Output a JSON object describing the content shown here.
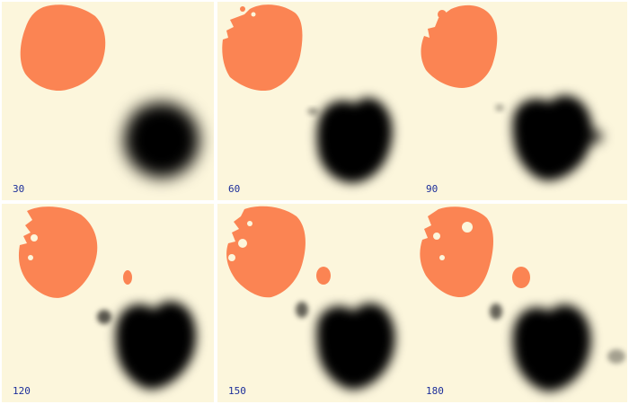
{
  "colors": {
    "background": "#fcf6dc",
    "blob_orange": "#fb8453",
    "blob_dark": "#000000",
    "label": "#1c2e9a"
  },
  "frames": [
    {
      "label": "30"
    },
    {
      "label": "60"
    },
    {
      "label": "90"
    },
    {
      "label": "120"
    },
    {
      "label": "150"
    },
    {
      "label": "180"
    }
  ]
}
